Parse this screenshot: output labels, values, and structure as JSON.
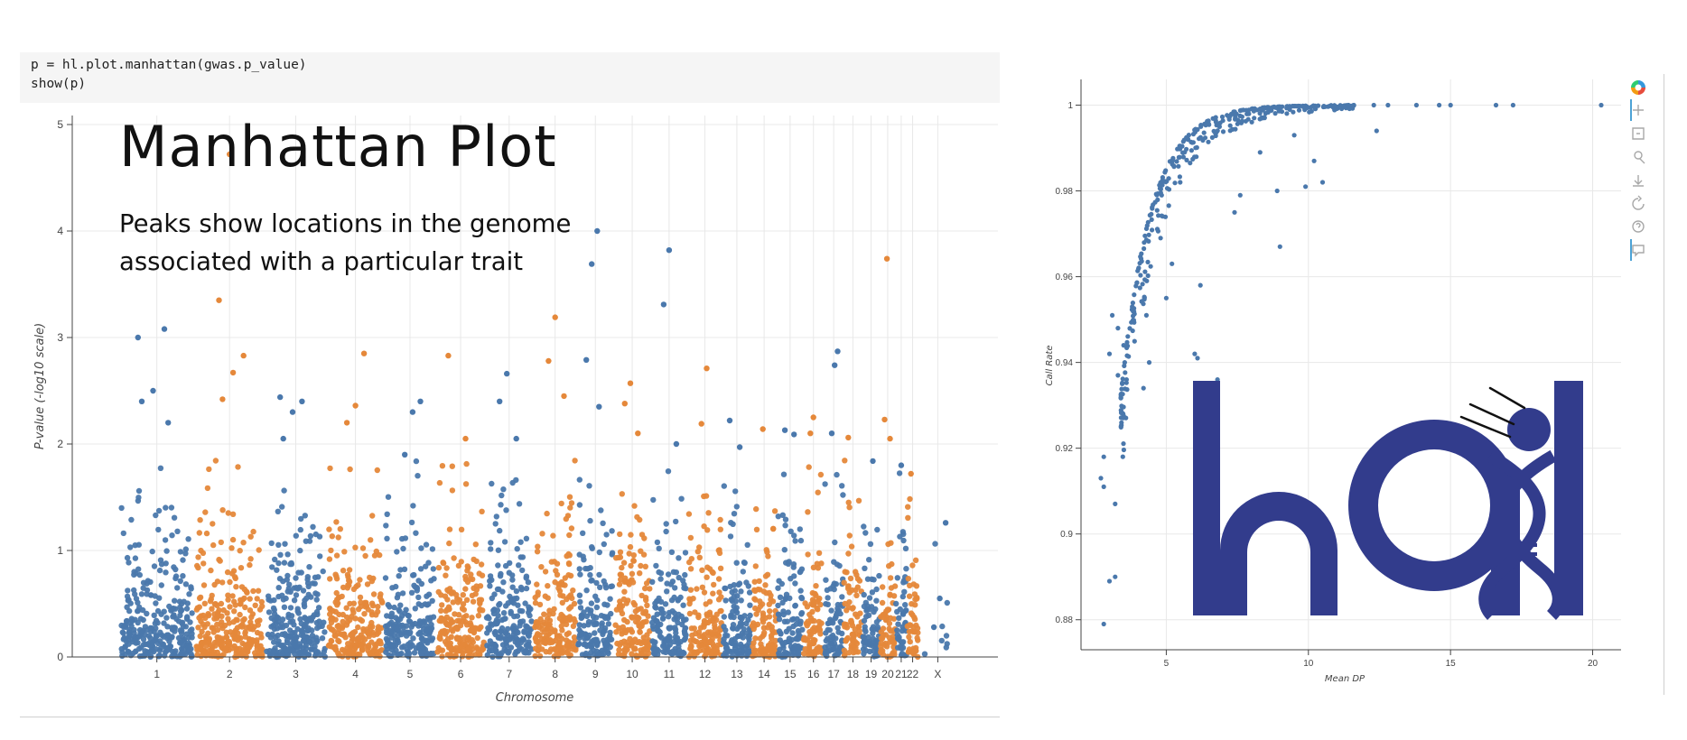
{
  "code_cell": {
    "lines": [
      "p = hl.plot.manhattan(gwas.p_value)",
      "show(p)"
    ]
  },
  "overlay": {
    "title": "Manhattan Plot",
    "subtitle_lines": [
      "Peaks show locations in the genome",
      "associated with a particular trait"
    ]
  },
  "colors": {
    "series_blue": "#4a78ac",
    "series_orange": "#e5883a",
    "hail_logo": "#323c8c"
  },
  "logo": {
    "name": "hail-logo",
    "text": "hail"
  },
  "toolbar": {
    "tools": [
      {
        "name": "bokeh-logo-icon",
        "icon": "bokeh-logo"
      },
      {
        "name": "pan-tool-icon",
        "icon": "pan"
      },
      {
        "name": "box-zoom-tool-icon",
        "icon": "box-zoom"
      },
      {
        "name": "wheel-zoom-tool-icon",
        "icon": "wheel-zoom"
      },
      {
        "name": "save-tool-icon",
        "icon": "save"
      },
      {
        "name": "reset-tool-icon",
        "icon": "reset"
      },
      {
        "name": "help-tool-icon",
        "icon": "help"
      },
      {
        "name": "hover-tool-icon",
        "icon": "hover"
      }
    ]
  },
  "chart_data": [
    {
      "type": "scatter",
      "title": "",
      "xlabel": "Chromosome",
      "ylabel": "P-value (-log10 scale)",
      "ylim": [
        0,
        5
      ],
      "y_ticks": [
        0,
        1,
        2,
        3,
        4,
        5
      ],
      "grid": true,
      "categories": [
        "1",
        "2",
        "3",
        "4",
        "5",
        "6",
        "7",
        "8",
        "9",
        "10",
        "11",
        "12",
        "13",
        "14",
        "15",
        "16",
        "17",
        "18",
        "19",
        "20",
        "21",
        "22",
        "X"
      ],
      "category_colors": [
        "blue",
        "orange",
        "blue",
        "orange",
        "blue",
        "orange",
        "blue",
        "orange",
        "blue",
        "orange",
        "blue",
        "orange",
        "blue",
        "orange",
        "blue",
        "orange",
        "blue",
        "orange",
        "blue",
        "orange",
        "blue",
        "orange",
        "blue"
      ],
      "category_weights": [
        1.45,
        1.35,
        1.2,
        1.1,
        1.0,
        0.95,
        0.92,
        0.85,
        0.7,
        0.72,
        0.7,
        0.68,
        0.55,
        0.5,
        0.5,
        0.4,
        0.38,
        0.36,
        0.34,
        0.3,
        0.22,
        0.22,
        0.75
      ],
      "peaks": [
        {
          "chromosome": "1",
          "y": 3.0
        },
        {
          "chromosome": "1",
          "y": 3.08
        },
        {
          "chromosome": "1",
          "y": 2.5
        },
        {
          "chromosome": "1",
          "y": 2.4
        },
        {
          "chromosome": "1",
          "y": 2.2
        },
        {
          "chromosome": "2",
          "y": 4.72
        },
        {
          "chromosome": "2",
          "y": 3.35
        },
        {
          "chromosome": "2",
          "y": 2.83
        },
        {
          "chromosome": "2",
          "y": 2.67
        },
        {
          "chromosome": "2",
          "y": 2.42
        },
        {
          "chromosome": "3",
          "y": 2.44
        },
        {
          "chromosome": "3",
          "y": 2.4
        },
        {
          "chromosome": "3",
          "y": 2.3
        },
        {
          "chromosome": "3",
          "y": 2.05
        },
        {
          "chromosome": "4",
          "y": 2.85
        },
        {
          "chromosome": "4",
          "y": 2.36
        },
        {
          "chromosome": "4",
          "y": 2.2
        },
        {
          "chromosome": "5",
          "y": 2.4
        },
        {
          "chromosome": "5",
          "y": 2.3
        },
        {
          "chromosome": "5",
          "y": 1.9
        },
        {
          "chromosome": "6",
          "y": 2.83
        },
        {
          "chromosome": "6",
          "y": 2.05
        },
        {
          "chromosome": "7",
          "y": 2.66
        },
        {
          "chromosome": "7",
          "y": 2.4
        },
        {
          "chromosome": "7",
          "y": 2.05
        },
        {
          "chromosome": "8",
          "y": 3.19
        },
        {
          "chromosome": "8",
          "y": 2.78
        },
        {
          "chromosome": "8",
          "y": 2.45
        },
        {
          "chromosome": "9",
          "y": 4.0
        },
        {
          "chromosome": "9",
          "y": 3.69
        },
        {
          "chromosome": "9",
          "y": 2.79
        },
        {
          "chromosome": "9",
          "y": 2.35
        },
        {
          "chromosome": "10",
          "y": 2.57
        },
        {
          "chromosome": "10",
          "y": 2.38
        },
        {
          "chromosome": "10",
          "y": 2.1
        },
        {
          "chromosome": "11",
          "y": 3.82
        },
        {
          "chromosome": "11",
          "y": 3.31
        },
        {
          "chromosome": "11",
          "y": 2.0
        },
        {
          "chromosome": "12",
          "y": 2.71
        },
        {
          "chromosome": "12",
          "y": 2.19
        },
        {
          "chromosome": "13",
          "y": 2.22
        },
        {
          "chromosome": "13",
          "y": 1.97
        },
        {
          "chromosome": "14",
          "y": 2.14
        },
        {
          "chromosome": "15",
          "y": 2.13
        },
        {
          "chromosome": "15",
          "y": 2.09
        },
        {
          "chromosome": "16",
          "y": 2.25
        },
        {
          "chromosome": "16",
          "y": 2.1
        },
        {
          "chromosome": "17",
          "y": 2.87
        },
        {
          "chromosome": "17",
          "y": 2.74
        },
        {
          "chromosome": "17",
          "y": 2.1
        },
        {
          "chromosome": "18",
          "y": 2.06
        },
        {
          "chromosome": "19",
          "y": 1.84
        },
        {
          "chromosome": "20",
          "y": 3.74
        },
        {
          "chromosome": "20",
          "y": 2.23
        },
        {
          "chromosome": "20",
          "y": 2.05
        },
        {
          "chromosome": "21",
          "y": 1.8
        },
        {
          "chromosome": "22",
          "y": 1.72
        },
        {
          "chromosome": "X",
          "y": 1.26
        },
        {
          "chromosome": "X",
          "y": 0.55
        },
        {
          "chromosome": "X",
          "y": 0.28
        }
      ]
    },
    {
      "type": "scatter",
      "title": "",
      "xlabel": "Mean DP",
      "ylabel": "Call Rate",
      "xlim": [
        2,
        21
      ],
      "ylim": [
        0.873,
        1.006
      ],
      "x_ticks": [
        5,
        10,
        15,
        20
      ],
      "y_ticks": [
        0.88,
        0.9,
        0.92,
        0.94,
        0.96,
        0.98,
        1
      ],
      "y_tick_labels": [
        "0.88",
        "0.9",
        "0.92",
        "0.94",
        "0.96",
        "0.98",
        "1"
      ],
      "grid": true,
      "outlier_points": [
        {
          "x": 20.3,
          "y": 1.0
        },
        {
          "x": 17.2,
          "y": 1.0
        },
        {
          "x": 16.6,
          "y": 1.0
        },
        {
          "x": 15.0,
          "y": 1.0
        },
        {
          "x": 14.6,
          "y": 1.0
        },
        {
          "x": 13.8,
          "y": 1.0
        },
        {
          "x": 12.8,
          "y": 1.0
        },
        {
          "x": 12.3,
          "y": 1.0
        },
        {
          "x": 11.6,
          "y": 1.0
        },
        {
          "x": 11.4,
          "y": 1.0
        },
        {
          "x": 12.4,
          "y": 0.994
        },
        {
          "x": 9.5,
          "y": 0.993
        },
        {
          "x": 10.2,
          "y": 0.987
        },
        {
          "x": 8.3,
          "y": 0.989
        },
        {
          "x": 10.5,
          "y": 0.982
        },
        {
          "x": 9.9,
          "y": 0.981
        },
        {
          "x": 8.9,
          "y": 0.98
        },
        {
          "x": 7.6,
          "y": 0.979
        },
        {
          "x": 7.4,
          "y": 0.975
        },
        {
          "x": 9.0,
          "y": 0.967
        },
        {
          "x": 6.2,
          "y": 0.958
        },
        {
          "x": 6.0,
          "y": 0.942
        },
        {
          "x": 6.1,
          "y": 0.941
        },
        {
          "x": 5.0,
          "y": 0.955
        },
        {
          "x": 5.2,
          "y": 0.963
        },
        {
          "x": 4.8,
          "y": 0.969
        },
        {
          "x": 4.4,
          "y": 0.94
        },
        {
          "x": 4.3,
          "y": 0.951
        },
        {
          "x": 3.8,
          "y": 0.953
        },
        {
          "x": 3.5,
          "y": 0.944
        },
        {
          "x": 3.3,
          "y": 0.948
        },
        {
          "x": 3.1,
          "y": 0.951
        },
        {
          "x": 3.0,
          "y": 0.942
        },
        {
          "x": 3.3,
          "y": 0.937
        },
        {
          "x": 3.6,
          "y": 0.936
        },
        {
          "x": 4.2,
          "y": 0.934
        },
        {
          "x": 6.8,
          "y": 0.936
        },
        {
          "x": 2.8,
          "y": 0.918
        },
        {
          "x": 2.7,
          "y": 0.913
        },
        {
          "x": 2.8,
          "y": 0.911
        },
        {
          "x": 3.2,
          "y": 0.907
        },
        {
          "x": 3.0,
          "y": 0.889
        },
        {
          "x": 3.2,
          "y": 0.89
        },
        {
          "x": 2.8,
          "y": 0.879
        }
      ]
    }
  ]
}
